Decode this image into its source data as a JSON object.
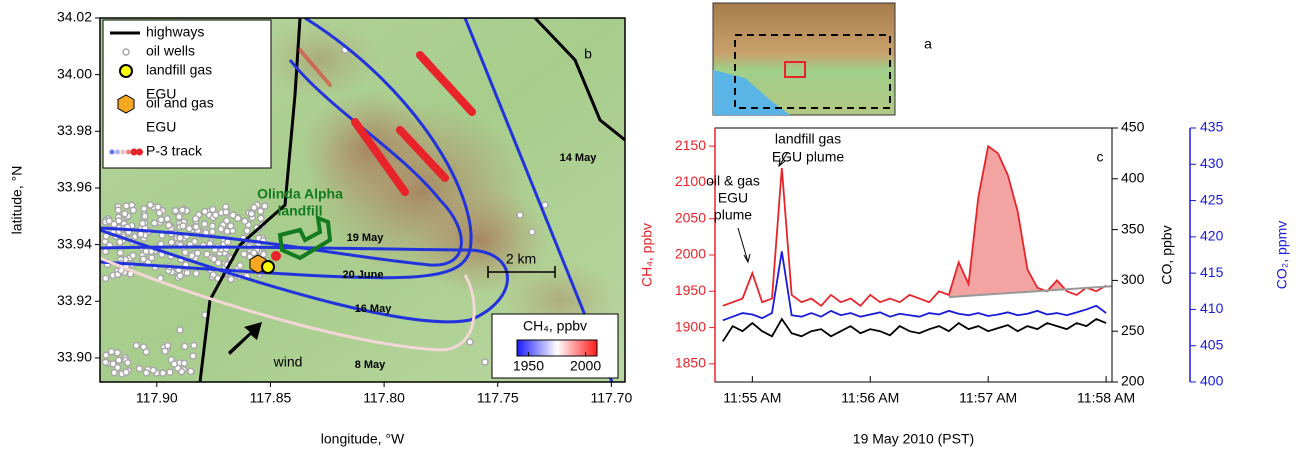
{
  "chart_data": [
    {
      "type": "map",
      "panel_label": "b",
      "inset_label": "a",
      "xlabel": "longitude, °W",
      "ylabel": "latitude, °N",
      "xlim": [
        117.925,
        117.694
      ],
      "xticks": [
        {
          "value": 117.9,
          "label": "117.90"
        },
        117.85,
        {
          "value": 117.8,
          "label": "117.80"
        },
        117.75,
        {
          "value": 117.7,
          "label": "117.70"
        }
      ],
      "ylim": [
        33.8915,
        34.02
      ],
      "yticks": [
        {
          "value": 33.9,
          "label": "33.90"
        },
        33.92,
        33.94,
        33.96,
        33.98,
        {
          "value": 34,
          "label": "34.00"
        },
        34.02
      ],
      "legend": [
        {
          "name": "highways",
          "color": "#000000"
        },
        {
          "name": "oil wells",
          "color": "#a8a8a8"
        },
        {
          "name": [
            "landfill gas",
            "EGU"
          ],
          "color": "#ffff00"
        },
        {
          "name": [
            "oil and gas",
            "EGU"
          ],
          "color": "#f7a823"
        },
        {
          "name": "P-3 track",
          "color": "#e8242a"
        }
      ],
      "landfill_label": [
        "Olinda Alpha",
        "landfill"
      ],
      "track_labels": [
        "14 May",
        "19 May",
        "20 June",
        "16 May",
        "8 May"
      ],
      "scale_bar": "2 km",
      "wind": "wind",
      "colorbar": {
        "label": "CH₄, ppbv",
        "lim": [
          1940,
          2010
        ],
        "ticks": [
          1950,
          2000
        ],
        "colors": [
          "#1a1aff",
          "#ffffff",
          "#ff1a1a"
        ]
      }
    },
    {
      "type": "line",
      "panel_label": "c",
      "xlabel": "19 May 2010 (PST)",
      "ylabel": "CH₄, ppbv",
      "y2label": "CO, ppbv",
      "y3label": "CO₂, ppmv",
      "x": [
        "11:54:45",
        "11:54:50",
        "11:54:55",
        "11:55:00",
        "11:55:05",
        "11:55:10",
        "11:55:15",
        "11:55:20",
        "11:55:25",
        "11:55:30",
        "11:55:35",
        "11:55:40",
        "11:55:45",
        "11:55:50",
        "11:55:55",
        "11:56:00",
        "11:56:05",
        "11:56:10",
        "11:56:15",
        "11:56:20",
        "11:56:25",
        "11:56:30",
        "11:56:35",
        "11:56:40",
        "11:56:45",
        "11:56:50",
        "11:56:55",
        "11:57:00",
        "11:57:05",
        "11:57:10",
        "11:57:15",
        "11:57:20",
        "11:57:25",
        "11:57:30",
        "11:57:35",
        "11:57:40",
        "11:57:45",
        "11:57:50",
        "11:57:55",
        "11:58:00"
      ],
      "xlim": [
        "11:54:41",
        "11:58:03"
      ],
      "xticks": [
        {
          "value": "11:55:00",
          "label": "11:55 AM"
        },
        {
          "value": "11:56:00",
          "label": "11:56 AM"
        },
        {
          "value": "11:57:00",
          "label": "11:57 AM"
        },
        {
          "value": "11:58:00",
          "label": "11:58 AM"
        }
      ],
      "ylim": [
        1825,
        2175
      ],
      "yticks": [
        1850,
        1900,
        1950,
        2000,
        2050,
        2100,
        2150
      ],
      "y2lim": [
        200,
        450
      ],
      "y2ticks": [
        200,
        250,
        300,
        350,
        400,
        450
      ],
      "y3lim": [
        400,
        435
      ],
      "y3ticks": [
        400,
        405,
        410,
        415,
        420,
        425,
        430,
        435
      ],
      "series": [
        {
          "color": "#e8242a",
          "values": [
            1930,
            1935,
            1940,
            1975,
            1935,
            1940,
            2120,
            1945,
            1935,
            1940,
            1930,
            1945,
            1935,
            1940,
            1930,
            1945,
            1935,
            1940,
            1935,
            1945,
            1940,
            1935,
            1950,
            1945,
            1990,
            1960,
            2080,
            2150,
            2140,
            2110,
            2060,
            1980,
            1955,
            1950,
            1965,
            1950,
            1945,
            1955,
            1950,
            1958
          ]
        },
        {
          "color": "#000000",
          "axis": "y2",
          "values": [
            240,
            255,
            250,
            258,
            250,
            245,
            262,
            248,
            245,
            250,
            252,
            245,
            250,
            255,
            248,
            252,
            250,
            246,
            255,
            250,
            248,
            252,
            255,
            250,
            258,
            252,
            255,
            250,
            253,
            256,
            250,
            255,
            252,
            258,
            255,
            252,
            258,
            255,
            262,
            258
          ]
        },
        {
          "color": "#1a1adb",
          "axis": "y3",
          "values": [
            408.5,
            409,
            409.5,
            409.3,
            408.8,
            409.5,
            418,
            409.2,
            409,
            409.5,
            409,
            409.8,
            409.2,
            409.5,
            409,
            409.3,
            409.6,
            409,
            409.4,
            409.2,
            409,
            409.5,
            409.3,
            409.8,
            409.4,
            409.2,
            409.5,
            409.1,
            409.3,
            409.6,
            409.2,
            409.4,
            409.8,
            409.3,
            409.5,
            409.2,
            409.6,
            410,
            410.5,
            409.5
          ]
        }
      ],
      "baseline": {
        "x": [
          "11:56:40",
          "11:58:03"
        ],
        "values": [
          1942,
          1957
        ],
        "color": "#999999",
        "fill": "#f4a3a3"
      },
      "annotations": [
        {
          "text": [
            "oil & gas",
            "EGU",
            "plume"
          ]
        },
        {
          "text": [
            "landfill gas",
            "EGU plume"
          ]
        }
      ]
    }
  ]
}
